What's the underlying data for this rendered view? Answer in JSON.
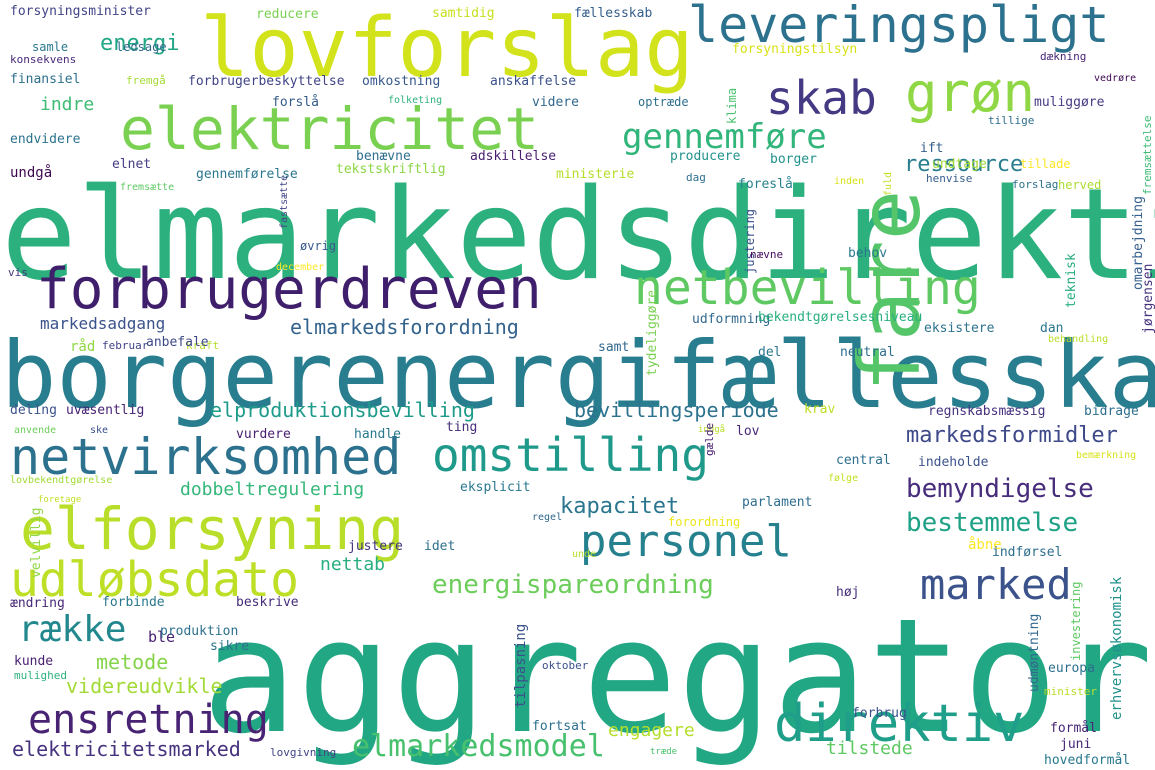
{
  "words": [
    {
      "text": "aggregator",
      "color": "#22a784"
    },
    {
      "text": "elmarkedsdirektiv",
      "color": "#2cb17e"
    },
    {
      "text": "borgerenergifællesskab",
      "color": "#287d8e"
    },
    {
      "text": "lovforslag",
      "color": "#d2e21b"
    },
    {
      "text": "leveringspligt",
      "color": "#2c728e"
    },
    {
      "text": "elektricitet",
      "color": "#7ad151"
    },
    {
      "text": "grøn",
      "color": "#8fd744"
    },
    {
      "text": "skab",
      "color": "#443983"
    },
    {
      "text": "gennemføre",
      "color": "#31b57b"
    },
    {
      "text": "forbrugerdreven",
      "color": "#3f1f6c"
    },
    {
      "text": "netbevilling",
      "color": "#5ec962"
    },
    {
      "text": "netvirksomhed",
      "color": "#2c728e"
    },
    {
      "text": "omstilling",
      "color": "#1f9a8a"
    },
    {
      "text": "fare",
      "color": "#54c568"
    },
    {
      "text": "elforsyning",
      "color": "#b8de29"
    },
    {
      "text": "personel",
      "color": "#26818e"
    },
    {
      "text": "udløbsdato",
      "color": "#bddf26"
    },
    {
      "text": "marked",
      "color": "#3b528b"
    },
    {
      "text": "ensretning",
      "color": "#482374"
    },
    {
      "text": "direktiv",
      "color": "#1f9e89"
    },
    {
      "text": "elmarkedsmodel",
      "color": "#48c16e"
    },
    {
      "text": "bemyndigelse",
      "color": "#472d7b"
    },
    {
      "text": "bestemmelse",
      "color": "#1fa187"
    },
    {
      "text": "energispareordning",
      "color": "#6ccd5a"
    },
    {
      "text": "række",
      "color": "#23888e"
    },
    {
      "text": "energi",
      "color": "#22a785"
    },
    {
      "text": "ressource",
      "color": "#287d8e"
    },
    {
      "text": "markedsformidler",
      "color": "#3e4989"
    },
    {
      "text": "elproduktionsbevilling",
      "color": "#1e9b8a"
    },
    {
      "text": "bevillingsperiode",
      "color": "#2c728e"
    },
    {
      "text": "elmarkedsforordning",
      "color": "#33638d"
    },
    {
      "text": "dobbeltregulering",
      "color": "#35b779"
    },
    {
      "text": "kapacitet",
      "color": "#2a768e"
    },
    {
      "text": "elektricitetsmarked",
      "color": "#46327e"
    },
    {
      "text": "videreudvikle",
      "color": "#a2da37"
    },
    {
      "text": "metode",
      "color": "#84d44b"
    },
    {
      "text": "engagere",
      "color": "#b5de2b"
    },
    {
      "text": "indre",
      "color": "#3dbc74"
    },
    {
      "text": "markedsadgang",
      "color": "#3b528b"
    },
    {
      "text": "nettab",
      "color": "#29af7f"
    },
    {
      "text": "tilstede",
      "color": "#5ec962"
    },
    {
      "text": "forsyningsminister",
      "color": "#414487"
    },
    {
      "text": "reducere",
      "color": "#7ad151"
    },
    {
      "text": "samtidig",
      "color": "#c8e020"
    },
    {
      "text": "fællesskab",
      "color": "#355f8d"
    },
    {
      "text": "forsyningstilsyn",
      "color": "#d8e219"
    },
    {
      "text": "samle",
      "color": "#2a788e"
    },
    {
      "text": "ledsage",
      "color": "#31688e"
    },
    {
      "text": "konsekvens",
      "color": "#482979"
    },
    {
      "text": "dækning",
      "color": "#482677"
    },
    {
      "text": "finansiel",
      "color": "#2d708e"
    },
    {
      "text": "fremgå",
      "color": "#a5db36"
    },
    {
      "text": "forbrugerbeskyttelse",
      "color": "#404588"
    },
    {
      "text": "omkostning",
      "color": "#38598c"
    },
    {
      "text": "anskaffelse",
      "color": "#3b528b"
    },
    {
      "text": "forslå",
      "color": "#365c8d"
    },
    {
      "text": "folketing",
      "color": "#2db27d"
    },
    {
      "text": "videre",
      "color": "#31688e"
    },
    {
      "text": "optræde",
      "color": "#2d708e"
    },
    {
      "text": "klima",
      "color": "#4ac16d"
    },
    {
      "text": "muliggøre",
      "color": "#443b84"
    },
    {
      "text": "tillige",
      "color": "#2e6e8e"
    },
    {
      "text": "vedrøre",
      "color": "#3e0751"
    },
    {
      "text": "endvidere",
      "color": "#2c728e"
    },
    {
      "text": "ift",
      "color": "#355f8d"
    },
    {
      "text": "undtage",
      "color": "#a2da37"
    },
    {
      "text": "tillade",
      "color": "#fde725"
    },
    {
      "text": "elnet",
      "color": "#433e85"
    },
    {
      "text": "benævne",
      "color": "#2e6f8e"
    },
    {
      "text": "adskillelse",
      "color": "#481f70"
    },
    {
      "text": "producere",
      "color": "#20928c"
    },
    {
      "text": "borger",
      "color": "#21918c"
    },
    {
      "text": "undgå",
      "color": "#3e0751"
    },
    {
      "text": "gennemførelse",
      "color": "#2a788e"
    },
    {
      "text": "tekstskriftlig",
      "color": "#8bd646"
    },
    {
      "text": "ministerie",
      "color": "#b5de2b"
    },
    {
      "text": "dag",
      "color": "#2d708e"
    },
    {
      "text": "inden",
      "color": "#d8e219"
    },
    {
      "text": "fuld",
      "color": "#c2df23"
    },
    {
      "text": "henvise",
      "color": "#355e8d"
    },
    {
      "text": "forslag",
      "color": "#2c728e"
    },
    {
      "text": "herved",
      "color": "#addc30"
    },
    {
      "text": "foreslå",
      "color": "#26828e"
    },
    {
      "text": "justering",
      "color": "#3b518b"
    },
    {
      "text": "fremsætte",
      "color": "#5ec962"
    },
    {
      "text": "fastsætte",
      "color": "#414487"
    },
    {
      "text": "øvrig",
      "color": "#38598c"
    },
    {
      "text": "nævne",
      "color": "#460a5d"
    },
    {
      "text": "behov",
      "color": "#2a788e"
    },
    {
      "text": "december",
      "color": "#fde725"
    },
    {
      "text": "vis",
      "color": "#453781"
    },
    {
      "text": "teknisk",
      "color": "#27ad81"
    },
    {
      "text": "jørgensen",
      "color": "#46337f"
    },
    {
      "text": "udformning",
      "color": "#31688e"
    },
    {
      "text": "bekendtgørelsesniveau",
      "color": "#29af7f"
    },
    {
      "text": "eksistere",
      "color": "#2c728e"
    },
    {
      "text": "dan",
      "color": "#2a768e"
    },
    {
      "text": "omarbejdning",
      "color": "#355f8d"
    },
    {
      "text": "fremsættelse",
      "color": "#3dbc74"
    },
    {
      "text": "råd",
      "color": "#8fd744"
    },
    {
      "text": "februar",
      "color": "#414487"
    },
    {
      "text": "kraft",
      "color": "#b5de2b"
    },
    {
      "text": "anbefale",
      "color": "#3e4989"
    },
    {
      "text": "samt",
      "color": "#31688e"
    },
    {
      "text": "del",
      "color": "#2a788e"
    },
    {
      "text": "neutral",
      "color": "#2e6e8e"
    },
    {
      "text": "behandling",
      "color": "#b8de29"
    },
    {
      "text": "tydeliggøre",
      "color": "#7ad151"
    },
    {
      "text": "deling",
      "color": "#3b528b"
    },
    {
      "text": "uvæsentlig",
      "color": "#482374"
    },
    {
      "text": "krav",
      "color": "#bddf26"
    },
    {
      "text": "regnskabsmæssig",
      "color": "#46327e"
    },
    {
      "text": "bidrage",
      "color": "#2d708e"
    },
    {
      "text": "anvende",
      "color": "#6ccd5a"
    },
    {
      "text": "ske",
      "color": "#3b528b"
    },
    {
      "text": "ting",
      "color": "#472d7b"
    },
    {
      "text": "indgå",
      "color": "#b8de29"
    },
    {
      "text": "vurdere",
      "color": "#481f70"
    },
    {
      "text": "handle",
      "color": "#29798e"
    },
    {
      "text": "lov",
      "color": "#482677"
    },
    {
      "text": "gælde",
      "color": "#481c6e"
    },
    {
      "text": "central",
      "color": "#2e6f8e"
    },
    {
      "text": "indeholde",
      "color": "#3b528b"
    },
    {
      "text": "følge",
      "color": "#c2df23"
    },
    {
      "text": "bemærkning",
      "color": "#d8e219"
    },
    {
      "text": "lovbekendtgørelse",
      "color": "#a2da37"
    },
    {
      "text": "foretage",
      "color": "#c2df23"
    },
    {
      "text": "eksplicit",
      "color": "#2a788e"
    },
    {
      "text": "parlament",
      "color": "#2e6e8e"
    },
    {
      "text": "velvillig",
      "color": "#8fd744"
    },
    {
      "text": "forordning",
      "color": "#ebe51a"
    },
    {
      "text": "regel",
      "color": "#31688e"
    },
    {
      "text": "idet",
      "color": "#2e6f8e"
    },
    {
      "text": "justere",
      "color": "#46327e"
    },
    {
      "text": "unde",
      "color": "#b5de2b"
    },
    {
      "text": "åbne",
      "color": "#fde725"
    },
    {
      "text": "indførsel",
      "color": "#2e6e8e"
    },
    {
      "text": "ændring",
      "color": "#482878"
    },
    {
      "text": "forbinde",
      "color": "#2a788e"
    },
    {
      "text": "ble",
      "color": "#482173"
    },
    {
      "text": "beskrive",
      "color": "#472c7a"
    },
    {
      "text": "høj",
      "color": "#472d7b"
    },
    {
      "text": "produktion",
      "color": "#2d708e"
    },
    {
      "text": "sikre",
      "color": "#2c728e"
    },
    {
      "text": "kunde",
      "color": "#481f70"
    },
    {
      "text": "mulighed",
      "color": "#2db27d"
    },
    {
      "text": "tilpasning",
      "color": "#3b528b"
    },
    {
      "text": "oktober",
      "color": "#3b528b"
    },
    {
      "text": "udmøntning",
      "color": "#31688e"
    },
    {
      "text": "investering",
      "color": "#5ec962"
    },
    {
      "text": "europa",
      "color": "#2e6f8e"
    },
    {
      "text": "minister",
      "color": "#b8de29"
    },
    {
      "text": "erhvervsøkonomisk",
      "color": "#21918c"
    },
    {
      "text": "forbrug",
      "color": "#3b528b"
    },
    {
      "text": "fortsat",
      "color": "#2d708e"
    },
    {
      "text": "træde",
      "color": "#4ac16d"
    },
    {
      "text": "formål",
      "color": "#482677"
    },
    {
      "text": "juni",
      "color": "#482677"
    },
    {
      "text": "lovgivning",
      "color": "#414487"
    },
    {
      "text": "hovedformål",
      "color": "#29798e"
    }
  ]
}
